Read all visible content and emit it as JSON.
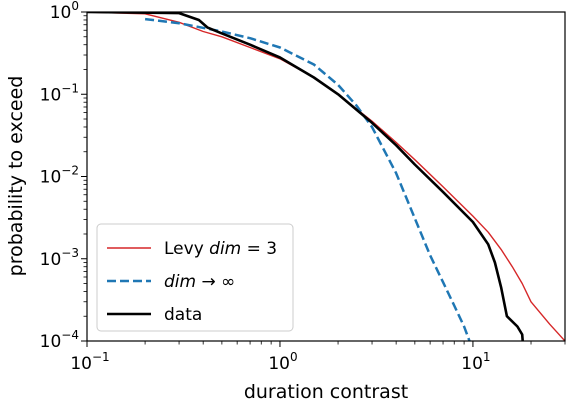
{
  "chart_data": {
    "type": "line",
    "xscale": "log",
    "yscale": "log",
    "xlim": [
      0.1,
      30
    ],
    "ylim": [
      0.0001,
      1
    ],
    "xlabel": "duration contrast",
    "ylabel": "probability to exceed",
    "xticks": [
      {
        "value": 0.1,
        "base": "10",
        "exp": "−1"
      },
      {
        "value": 1,
        "base": "10",
        "exp": "0"
      },
      {
        "value": 10,
        "base": "10",
        "exp": "1"
      }
    ],
    "yticks": [
      {
        "value": 0.0001,
        "base": "10",
        "exp": "−4"
      },
      {
        "value": 0.001,
        "base": "10",
        "exp": "−3"
      },
      {
        "value": 0.01,
        "base": "10",
        "exp": "−2"
      },
      {
        "value": 0.1,
        "base": "10",
        "exp": "−1"
      },
      {
        "value": 1,
        "base": "10",
        "exp": "0"
      }
    ],
    "legend_position": "lower-left",
    "legend": [
      {
        "text_before": "Levy ",
        "text_italic": "dim",
        "text_after": " = 3",
        "style": "thin-solid",
        "color": "#d62728"
      },
      {
        "text_before": "",
        "text_italic": "dim",
        "text_after": " → ∞",
        "style": "dashed",
        "color": "#1f77b4"
      },
      {
        "text_before": "",
        "text_italic": "",
        "text_after": "data",
        "style": "thick-solid",
        "color": "#000000"
      }
    ],
    "series": [
      {
        "name": "Levy dim = 3",
        "color": "#d62728",
        "style": "thin-solid",
        "x": [
          0.1,
          0.2,
          0.3,
          0.4,
          0.5,
          0.7,
          1.0,
          1.5,
          2.0,
          3.0,
          4.0,
          5.0,
          7.0,
          10.0,
          12.0,
          14.0,
          16.0,
          18.0,
          20.0,
          25.0,
          30.0
        ],
        "y": [
          1.0,
          0.95,
          0.75,
          0.58,
          0.5,
          0.37,
          0.27,
          0.16,
          0.1,
          0.047,
          0.026,
          0.016,
          0.0075,
          0.0033,
          0.0021,
          0.0013,
          0.0008,
          0.0005,
          0.0003,
          0.00016,
          0.0001
        ]
      },
      {
        "name": "dim → ∞",
        "color": "#1f77b4",
        "style": "dashed",
        "x": [
          0.2,
          0.3,
          0.5,
          0.7,
          1.0,
          1.5,
          2.0,
          2.5,
          3.0,
          4.0,
          5.0,
          6.0,
          7.0,
          8.0,
          9.0,
          9.6
        ],
        "y": [
          0.82,
          0.73,
          0.58,
          0.48,
          0.37,
          0.23,
          0.13,
          0.072,
          0.04,
          0.011,
          0.0031,
          0.0011,
          0.00052,
          0.00027,
          0.00015,
          0.0001
        ]
      },
      {
        "name": "data",
        "color": "#000000",
        "style": "thick-solid",
        "x": [
          0.1,
          0.3,
          0.38,
          0.42,
          0.5,
          0.7,
          1.0,
          1.5,
          2.0,
          3.0,
          4.0,
          5.0,
          7.0,
          10.0,
          12.0,
          13.0,
          14.0,
          15.0,
          17.0,
          18.0,
          18.1
        ],
        "y": [
          1.0,
          0.97,
          0.8,
          0.65,
          0.55,
          0.4,
          0.28,
          0.16,
          0.1,
          0.045,
          0.024,
          0.014,
          0.0065,
          0.0028,
          0.0015,
          0.0009,
          0.00045,
          0.0002,
          0.00015,
          0.00012,
          0.0001
        ]
      }
    ]
  }
}
